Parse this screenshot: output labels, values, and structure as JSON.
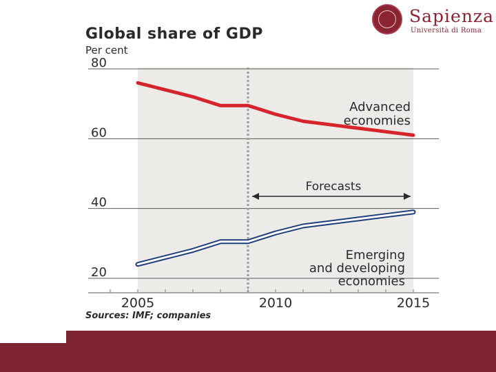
{
  "logo": {
    "name": "Sapienza",
    "subtitle": "Università di Roma"
  },
  "colors": {
    "advanced": "#d6232c",
    "emerging": "#1f3d7a",
    "brand": "#7d2332"
  },
  "chart_data": {
    "type": "line",
    "title": "Global share of GDP",
    "subtitle": "Per cent",
    "source": "Sources: IMF; companies",
    "x_ticks": [
      "2005",
      "2010",
      "2015"
    ],
    "y_ticks": [
      "80",
      "60",
      "40",
      "20"
    ],
    "ylim": [
      20,
      80
    ],
    "xlim": [
      2004,
      2016
    ],
    "forecast_start": 2009,
    "forecast_label": "Forecasts",
    "shaded": true,
    "series": [
      {
        "name": "Advanced economies",
        "label_lines": [
          "Advanced",
          "economies"
        ],
        "x": [
          2005,
          2006,
          2007,
          2008,
          2009,
          2010,
          2011,
          2012,
          2013,
          2014,
          2015
        ],
        "values": [
          76,
          74,
          72,
          69.5,
          69.5,
          67,
          65,
          64,
          63,
          62,
          61
        ]
      },
      {
        "name": "Emerging and developing economies",
        "label_lines": [
          "Emerging",
          "and developing",
          "economies"
        ],
        "x": [
          2005,
          2006,
          2007,
          2008,
          2009,
          2010,
          2011,
          2012,
          2013,
          2014,
          2015
        ],
        "values": [
          24,
          26,
          28,
          30.5,
          30.5,
          33,
          35,
          36,
          37,
          38,
          39
        ]
      }
    ]
  }
}
